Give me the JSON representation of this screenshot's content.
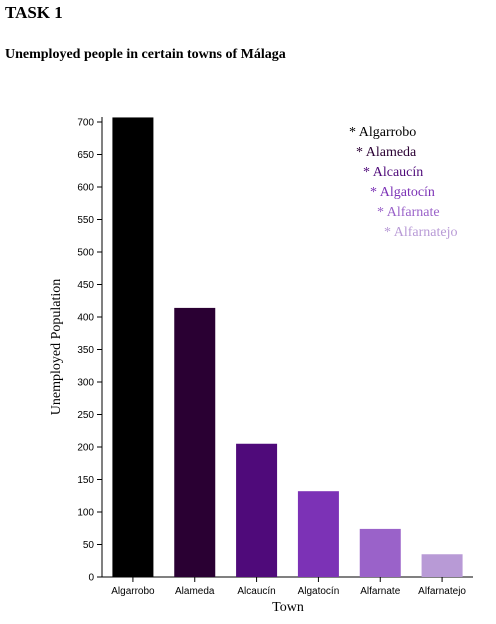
{
  "page": {
    "heading": "TASK 1",
    "subtitle": "Unemployed people in certain towns of Málaga"
  },
  "chart_data": {
    "type": "bar",
    "title": "Unemployed people in certain towns of Málaga",
    "xlabel": "Town",
    "ylabel": "Unemployed Population",
    "categories": [
      "Algarrobo",
      "Alameda",
      "Alcaucín",
      "Algatocín",
      "Alfarnate",
      "Alfarnatejo"
    ],
    "values": [
      707,
      414,
      205,
      132,
      74,
      35
    ],
    "colors": [
      "#000000",
      "#2a0033",
      "#4f0a7a",
      "#7c32b6",
      "#9a62c9",
      "#b89ad6"
    ],
    "ylim": [
      0,
      700
    ],
    "yticks": [
      0,
      50,
      100,
      150,
      200,
      250,
      300,
      350,
      400,
      450,
      500,
      550,
      600,
      650,
      700
    ],
    "grid": false,
    "legend": {
      "placement": "top-right",
      "marker": "*",
      "entries": [
        "Algarrobo",
        "Alameda",
        "Alcaucín",
        "Algatocín",
        "Alfarnate",
        "Alfarnatejo"
      ]
    }
  }
}
